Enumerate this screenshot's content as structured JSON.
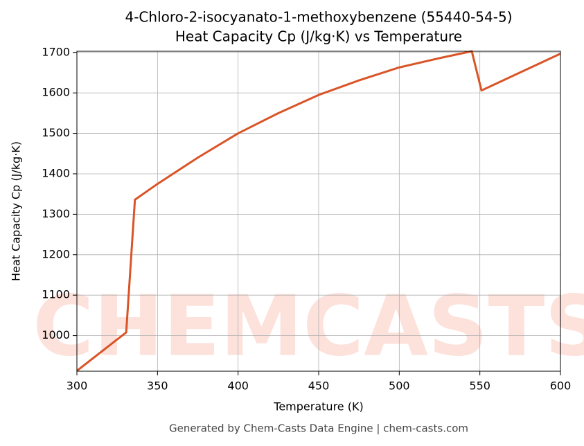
{
  "chart_data": {
    "type": "line",
    "title": "4-Chloro-2-isocyanato-1-methoxybenzene (55440-54-5)",
    "subtitle": "Heat Capacity Cp (J/kg·K) vs Temperature",
    "x_label": "Temperature (K)",
    "y_label": "Heat Capacity Cp (J/kg·K)",
    "footer": "Generated by Chem-Casts Data Engine | chem-casts.com",
    "watermark": "CHEMCASTS",
    "x": [
      300,
      330.6,
      336,
      350,
      375,
      400,
      425,
      450,
      475,
      500,
      525,
      545,
      551,
      600
    ],
    "series": [
      {
        "name": "Cp",
        "color": "#d95427",
        "values": [
          913,
          1008,
          1336,
          1375,
          1440,
          1500,
          1550,
          1595,
          1631,
          1663,
          1686,
          1703,
          1606,
          1697
        ]
      }
    ],
    "xlim": [
      300,
      600
    ],
    "xticks": [
      300,
      350,
      400,
      450,
      500,
      550,
      600
    ],
    "ylim": [
      912,
      1703
    ],
    "yticks": [
      1000,
      1100,
      1200,
      1300,
      1400,
      1500,
      1600,
      1700
    ],
    "grid": true
  }
}
